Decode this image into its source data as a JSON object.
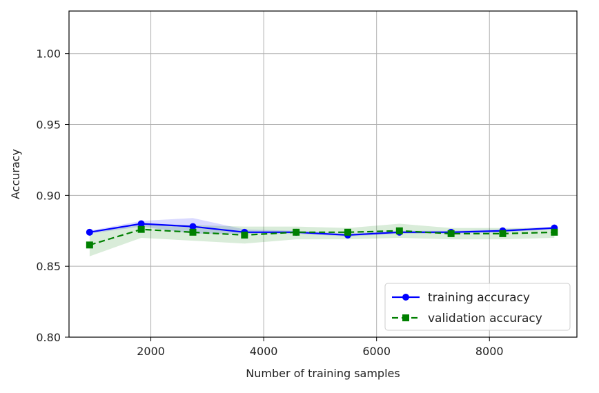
{
  "chart_data": {
    "type": "line",
    "title": "",
    "xlabel": "Number of training samples",
    "ylabel": "Accuracy",
    "xlim": [
      550,
      9550
    ],
    "ylim": [
      0.8,
      1.03
    ],
    "xticks": [
      2000,
      4000,
      6000,
      8000
    ],
    "xtick_labels": [
      "2000",
      "4000",
      "6000",
      "8000"
    ],
    "yticks": [
      0.8,
      0.85,
      0.9,
      0.95,
      1.0
    ],
    "ytick_labels": [
      "0.80",
      "0.85",
      "0.90",
      "0.95",
      "1.00"
    ],
    "grid": true,
    "legend_position": "lower-right",
    "x": [
      915,
      1830,
      2745,
      3660,
      4575,
      5490,
      6405,
      7320,
      8235,
      9150
    ],
    "series": [
      {
        "name": "training accuracy",
        "color": "#0000ff",
        "line_style": "solid",
        "marker": "circle",
        "values": [
          0.874,
          0.88,
          0.878,
          0.874,
          0.874,
          0.872,
          0.874,
          0.874,
          0.875,
          0.877
        ],
        "band_lower": [
          0.873,
          0.878,
          0.873,
          0.873,
          0.873,
          0.871,
          0.873,
          0.873,
          0.874,
          0.876
        ],
        "band_upper": [
          0.875,
          0.882,
          0.884,
          0.876,
          0.875,
          0.873,
          0.875,
          0.875,
          0.876,
          0.878
        ]
      },
      {
        "name": "validation accuracy",
        "color": "#008000",
        "line_style": "dashed",
        "marker": "square",
        "values": [
          0.865,
          0.876,
          0.874,
          0.872,
          0.874,
          0.874,
          0.875,
          0.873,
          0.873,
          0.874
        ],
        "band_lower": [
          0.857,
          0.87,
          0.868,
          0.866,
          0.869,
          0.869,
          0.87,
          0.869,
          0.869,
          0.87
        ],
        "band_upper": [
          0.873,
          0.88,
          0.879,
          0.878,
          0.878,
          0.877,
          0.88,
          0.877,
          0.877,
          0.877
        ]
      }
    ]
  }
}
